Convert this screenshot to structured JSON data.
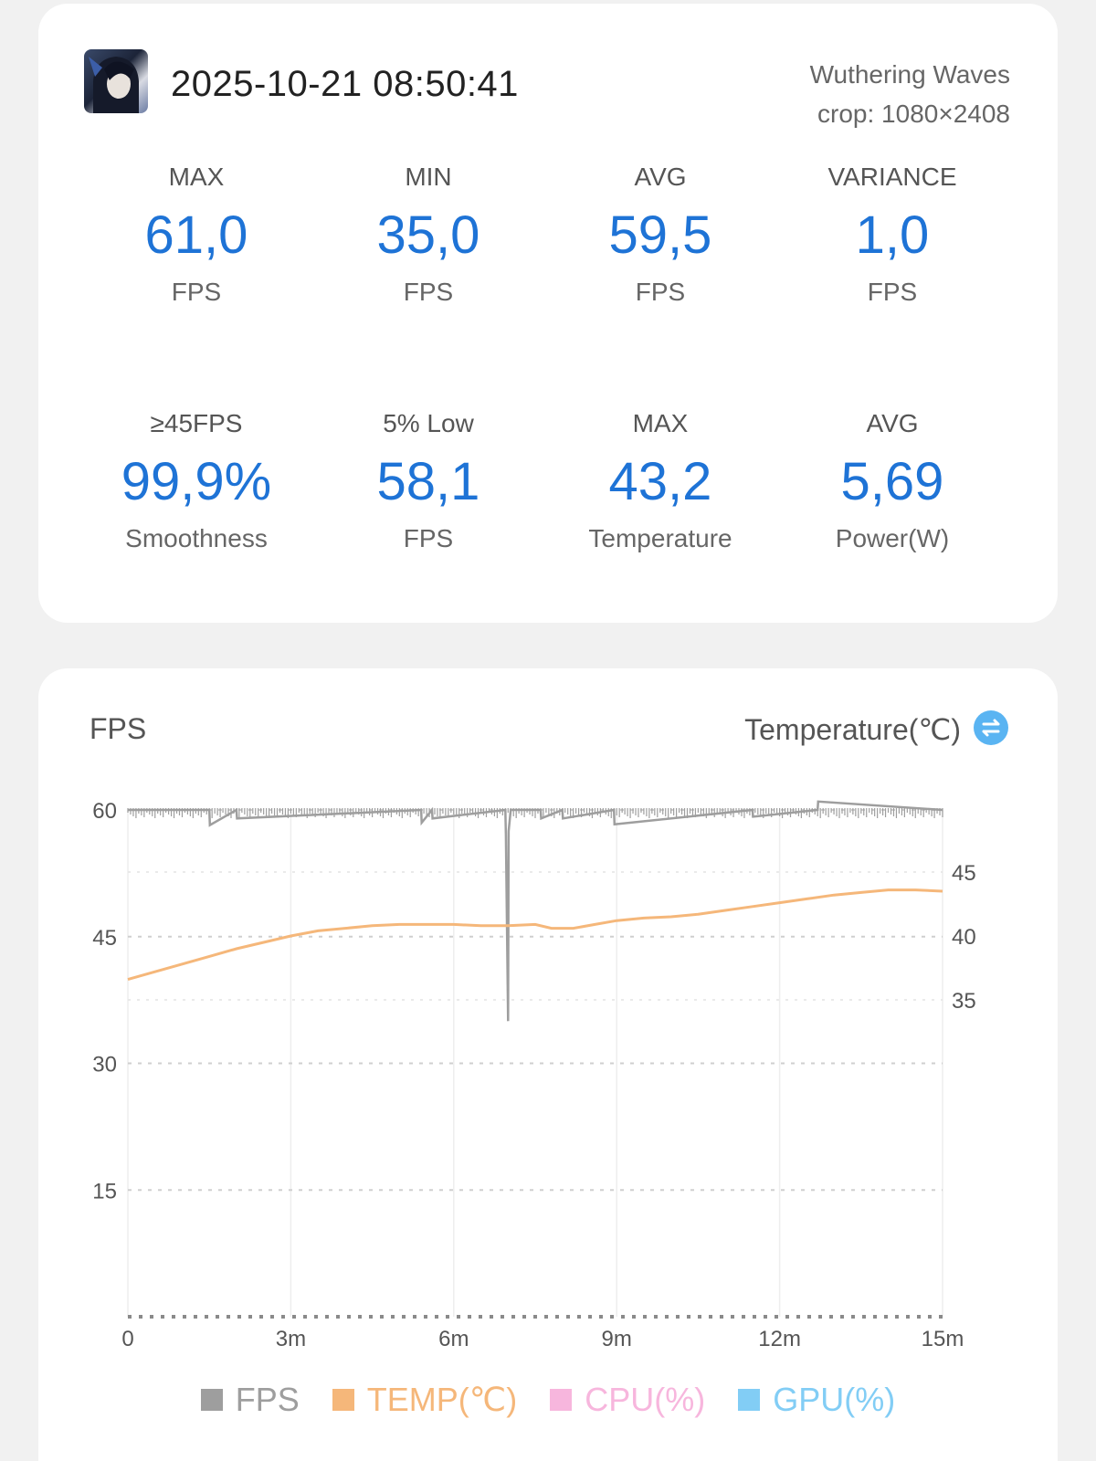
{
  "header": {
    "datetime": "2025-10-21 08:50:41",
    "game": "Wuthering Waves",
    "crop": "crop: 1080×2408"
  },
  "stats_row_1": [
    {
      "label": "MAX",
      "value": "61,0",
      "unit": "FPS"
    },
    {
      "label": "MIN",
      "value": "35,0",
      "unit": "FPS"
    },
    {
      "label": "AVG",
      "value": "59,5",
      "unit": "FPS"
    },
    {
      "label": "VARIANCE",
      "value": "1,0",
      "unit": "FPS"
    }
  ],
  "stats_row_2": [
    {
      "label": "≥45FPS",
      "value": "99,9%",
      "unit": "Smoothness"
    },
    {
      "label": "5% Low",
      "value": "58,1",
      "unit": "FPS"
    },
    {
      "label": "MAX",
      "value": "43,2",
      "unit": "Temperature"
    },
    {
      "label": "AVG",
      "value": "5,69",
      "unit": "Power(W)"
    }
  ],
  "chart": {
    "left_title": "FPS",
    "right_title": "Temperature(℃)",
    "swap_icon": "swap-icon"
  },
  "colors": {
    "accent": "#1e73d6",
    "fps": "#9e9e9e",
    "temp": "#f5b77a",
    "cpu": "#f7b6dd",
    "gpu": "#82cdf5"
  },
  "chart_data": {
    "type": "line",
    "x_unit": "minutes",
    "xlim": [
      0,
      15
    ],
    "x_ticks": [
      0,
      3,
      6,
      9,
      12,
      15
    ],
    "x_tick_labels": [
      "0",
      "3m",
      "6m",
      "9m",
      "12m",
      "15m"
    ],
    "ylim_left": [
      0,
      60
    ],
    "y_ticks_left": [
      15,
      30,
      45,
      60
    ],
    "y_tick_labels_left": [
      "15",
      "30",
      "45",
      "60"
    ],
    "y_ticks_right": [
      35,
      40,
      45
    ],
    "y_tick_labels_right": [
      "35",
      "40",
      "45"
    ],
    "grid": true,
    "legend_position": "bottom",
    "legend": [
      "FPS",
      "TEMP(℃)",
      "CPU(%)",
      "GPU(%)"
    ],
    "series": [
      {
        "name": "FPS",
        "axis": "left",
        "baseline": 60,
        "x": [
          0,
          1.5,
          1.51,
          2.0,
          2.01,
          5.4,
          5.41,
          5.6,
          5.61,
          6.95,
          6.96,
          7.0,
          7.01,
          7.05,
          7.06,
          7.6,
          7.61,
          8.0,
          8.01,
          8.95,
          8.96,
          11.5,
          11.51,
          12.7,
          12.71,
          15.0
        ],
        "y": [
          60,
          60,
          58.2,
          60,
          59.0,
          60,
          58.5,
          60,
          59.0,
          60,
          57.0,
          35,
          57.5,
          60,
          60,
          60,
          59.0,
          60,
          59.0,
          60,
          58.3,
          60,
          59.2,
          60,
          61.0,
          60
        ]
      },
      {
        "name": "TEMP(℃)",
        "axis": "right",
        "x": [
          0,
          0.5,
          1,
          1.5,
          2,
          2.5,
          3,
          3.5,
          4,
          4.5,
          5,
          5.5,
          6,
          6.5,
          7,
          7.5,
          7.8,
          8.2,
          8.6,
          9,
          9.5,
          10,
          10.5,
          11,
          11.5,
          12,
          12.5,
          13,
          13.5,
          14,
          14.5,
          15
        ],
        "y": [
          36.6,
          37.2,
          37.8,
          38.4,
          39.0,
          39.5,
          40.0,
          40.4,
          40.6,
          40.8,
          40.9,
          40.9,
          40.9,
          40.8,
          40.8,
          40.9,
          40.6,
          40.6,
          40.9,
          41.2,
          41.4,
          41.5,
          41.7,
          42.0,
          42.3,
          42.6,
          42.9,
          43.2,
          43.4,
          43.6,
          43.6,
          43.5
        ]
      }
    ]
  }
}
